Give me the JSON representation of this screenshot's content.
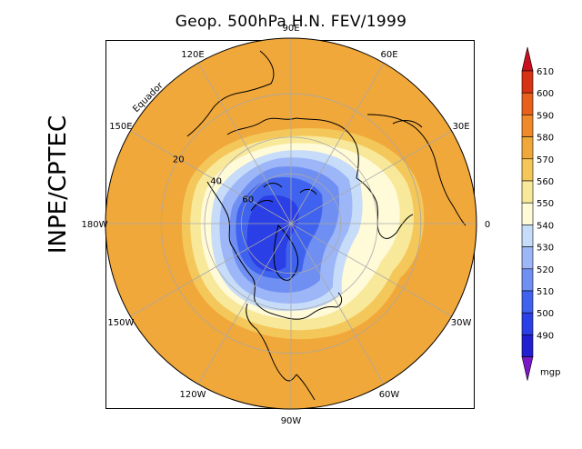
{
  "header": {
    "title": "Geop. 500hPa H.N. FEV/1999"
  },
  "side_label": "INPE/CPTEC",
  "map": {
    "projection": "north-polar-stereographic",
    "longitude_labels": [
      "90E",
      "60E",
      "30E",
      "0",
      "30W",
      "60W",
      "90W",
      "120W",
      "150W",
      "180W",
      "150E",
      "120E"
    ],
    "latitude_labels": [
      "20",
      "40",
      "60"
    ],
    "equator_label": "Equador"
  },
  "colorbar": {
    "unit": "mgp",
    "levels": [
      "490",
      "500",
      "510",
      "520",
      "530",
      "540",
      "550",
      "560",
      "570",
      "580",
      "590",
      "600",
      "610"
    ],
    "colors": [
      "#2020d0",
      "#2a3fe6",
      "#3f63ee",
      "#6f8ff2",
      "#9db6f7",
      "#c6dcf9",
      "#fffad8",
      "#f8e89a",
      "#f4c75a",
      "#f1a83a",
      "#ef8a2a",
      "#e8611c",
      "#d83214"
    ],
    "low_color": "#7a18c8",
    "high_color": "#c8101e"
  },
  "field_colors": {
    "ocean": "#f1a83a",
    "coast": "#000000",
    "grid": "#a8a8a8"
  }
}
